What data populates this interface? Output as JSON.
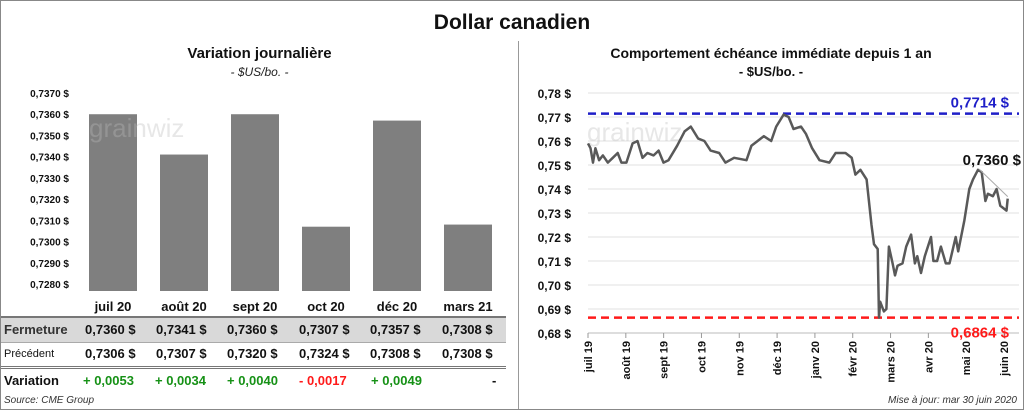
{
  "title": "Dollar canadien",
  "left": {
    "subtitle": "Variation  journalière",
    "unit": "- $US/bo. -",
    "table": {
      "months": [
        "juil 20",
        "août 20",
        "sept 20",
        "oct 20",
        "déc 20",
        "mars 21"
      ],
      "rows": [
        {
          "label": "Fermeture",
          "values": [
            "0,7360  $",
            "0,7341  $",
            "0,7360  $",
            "0,7307  $",
            "0,7357  $",
            "0,7308  $"
          ]
        },
        {
          "label": "Précédent",
          "values": [
            "0,7306  $",
            "0,7307  $",
            "0,7320  $",
            "0,7324  $",
            "0,7308  $",
            "0,7308  $"
          ]
        },
        {
          "label": "Variation",
          "values": [
            "+ 0,0053",
            "+ 0,0034",
            "+ 0,0040",
            "- 0,0017",
            "+ 0,0049",
            "-"
          ]
        }
      ]
    },
    "source": "Source: CME Group"
  },
  "right": {
    "title": "Comportement échéance immédiate depuis 1 an",
    "unit": "- $US/bo. -",
    "updated": "Mise à jour: mar 30 juin 2020"
  },
  "watermark": "grainwiz",
  "colors": {
    "bar": "#7f7f7f",
    "line": "#595959",
    "high": "#1f1fc8",
    "low": "#ff1a1a",
    "positive": "#169116",
    "negative": "#ff1a1a",
    "row_fill": "#d9d9d9"
  },
  "chart_data": [
    {
      "type": "bar",
      "categories": [
        "juil 20",
        "août 20",
        "sept 20",
        "oct 20",
        "déc 20",
        "mars 21"
      ],
      "values": [
        0.736,
        0.7341,
        0.736,
        0.7307,
        0.7357,
        0.7308
      ],
      "ylim": [
        0.728,
        0.737
      ],
      "yticks": [
        "0,7280 $",
        "0,7290 $",
        "0,7300 $",
        "0,7310 $",
        "0,7320 $",
        "0,7330 $",
        "0,7340 $",
        "0,7350 $",
        "0,7360 $",
        "0,7370 $"
      ],
      "grid": false
    },
    {
      "type": "line",
      "ylim": [
        0.68,
        0.78
      ],
      "yticks": [
        "0,68 $",
        "0,69 $",
        "0,70 $",
        "0,71 $",
        "0,72 $",
        "0,73 $",
        "0,74 $",
        "0,75 $",
        "0,76 $",
        "0,77 $",
        "0,78 $"
      ],
      "xticks": [
        "juil 19",
        "août 19",
        "sept 19",
        "oct 19",
        "nov 19",
        "déc 19",
        "janv 20",
        "févr 20",
        "mars 20",
        "avr 20",
        "mai 20",
        "juin 20"
      ],
      "grid": true,
      "high": {
        "value": 0.7714,
        "label": "0,7714 $"
      },
      "low": {
        "value": 0.6864,
        "label": "0,6864 $"
      },
      "last": {
        "value": 0.736,
        "label": "0,7360 $"
      },
      "series": [
        [
          "2019-07-01",
          0.759
        ],
        [
          "2019-07-03",
          0.757
        ],
        [
          "2019-07-05",
          0.751
        ],
        [
          "2019-07-07",
          0.757
        ],
        [
          "2019-07-10",
          0.752
        ],
        [
          "2019-07-13",
          0.754
        ],
        [
          "2019-07-17",
          0.751
        ],
        [
          "2019-07-21",
          0.753
        ],
        [
          "2019-07-25",
          0.755
        ],
        [
          "2019-07-28",
          0.751
        ],
        [
          "2019-08-01",
          0.751
        ],
        [
          "2019-08-06",
          0.759
        ],
        [
          "2019-08-10",
          0.76
        ],
        [
          "2019-08-14",
          0.753
        ],
        [
          "2019-08-18",
          0.755
        ],
        [
          "2019-08-23",
          0.754
        ],
        [
          "2019-08-27",
          0.756
        ],
        [
          "2019-08-31",
          0.751
        ],
        [
          "2019-09-04",
          0.752
        ],
        [
          "2019-09-11",
          0.758
        ],
        [
          "2019-09-17",
          0.764
        ],
        [
          "2019-09-22",
          0.766
        ],
        [
          "2019-09-28",
          0.761
        ],
        [
          "2019-10-03",
          0.76
        ],
        [
          "2019-10-08",
          0.756
        ],
        [
          "2019-10-15",
          0.755
        ],
        [
          "2019-10-20",
          0.751
        ],
        [
          "2019-10-27",
          0.753
        ],
        [
          "2019-11-06",
          0.752
        ],
        [
          "2019-11-10",
          0.758
        ],
        [
          "2019-11-15",
          0.76
        ],
        [
          "2019-11-20",
          0.762
        ],
        [
          "2019-11-26",
          0.76
        ],
        [
          "2019-11-30",
          0.766
        ],
        [
          "2019-12-06",
          0.771
        ],
        [
          "2019-12-10",
          0.77
        ],
        [
          "2019-12-14",
          0.765
        ],
        [
          "2019-12-20",
          0.766
        ],
        [
          "2019-12-24",
          0.763
        ],
        [
          "2019-12-29",
          0.757
        ],
        [
          "2020-01-04",
          0.752
        ],
        [
          "2020-01-12",
          0.751
        ],
        [
          "2020-01-17",
          0.755
        ],
        [
          "2020-01-25",
          0.755
        ],
        [
          "2020-01-30",
          0.753
        ],
        [
          "2020-02-02",
          0.746
        ],
        [
          "2020-02-06",
          0.748
        ],
        [
          "2020-02-11",
          0.744
        ],
        [
          "2020-02-15",
          0.725
        ],
        [
          "2020-02-17",
          0.717
        ],
        [
          "2020-02-20",
          0.715
        ],
        [
          "2020-02-21",
          0.6864
        ],
        [
          "2020-02-22",
          0.693
        ],
        [
          "2020-02-25",
          0.689
        ],
        [
          "2020-02-27",
          0.69
        ],
        [
          "2020-02-29",
          0.716
        ],
        [
          "2020-03-03",
          0.709
        ],
        [
          "2020-03-05",
          0.704
        ],
        [
          "2020-03-07",
          0.708
        ],
        [
          "2020-03-11",
          0.709
        ],
        [
          "2020-03-14",
          0.716
        ],
        [
          "2020-03-18",
          0.721
        ],
        [
          "2020-03-21",
          0.709
        ],
        [
          "2020-03-23",
          0.712
        ],
        [
          "2020-03-26",
          0.705
        ],
        [
          "2020-03-29",
          0.712
        ],
        [
          "2020-04-03",
          0.72
        ],
        [
          "2020-04-05",
          0.71
        ],
        [
          "2020-04-08",
          0.71
        ],
        [
          "2020-04-11",
          0.716
        ],
        [
          "2020-04-15",
          0.709
        ],
        [
          "2020-04-18",
          0.709
        ],
        [
          "2020-04-23",
          0.72
        ],
        [
          "2020-04-25",
          0.714
        ],
        [
          "2020-04-30",
          0.727
        ],
        [
          "2020-05-04",
          0.74
        ],
        [
          "2020-05-07",
          0.744
        ],
        [
          "2020-05-11",
          0.748
        ],
        [
          "2020-05-14",
          0.747
        ],
        [
          "2020-05-17",
          0.735
        ],
        [
          "2020-05-19",
          0.738
        ],
        [
          "2020-05-23",
          0.737
        ],
        [
          "2020-05-26",
          0.74
        ],
        [
          "2020-05-29",
          0.733
        ],
        [
          "2020-06-03",
          0.731
        ],
        [
          "2020-06-04",
          0.736
        ]
      ]
    }
  ]
}
